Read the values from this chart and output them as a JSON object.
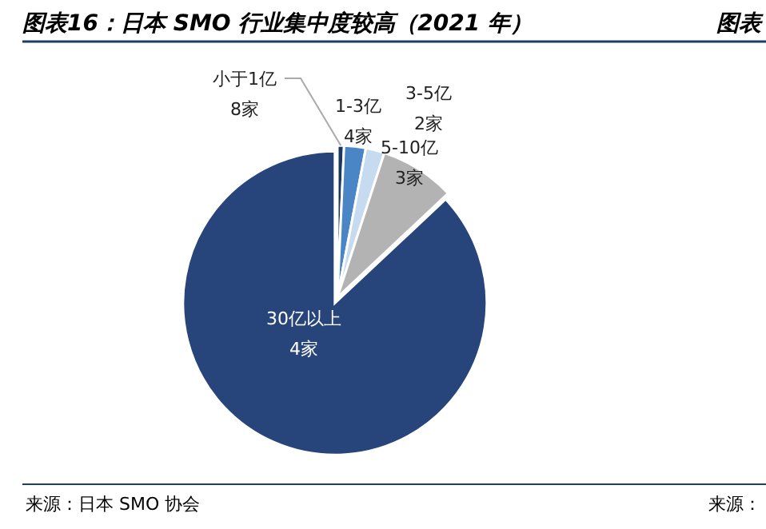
{
  "chart_data": {
    "type": "pie",
    "title": "图表16：日本 SMO 行业集中度较高（2021 年）",
    "categories": [
      "小于1亿",
      "1-3亿",
      "3-5亿",
      "5-10亿",
      "30亿以上"
    ],
    "values": [
      0.7,
      2.3,
      2,
      8,
      87
    ],
    "colors": [
      "#17375e",
      "#4a86c5",
      "#c6dbef",
      "#b3b3b3",
      "#27457a"
    ],
    "annotations": [
      "图表",
      "来源：日本 SMO 协会",
      "来源：",
      {
        "text": "8家",
        "x": "小于1亿"
      },
      {
        "text": "4家",
        "x": "1-3亿"
      },
      {
        "text": "2家",
        "x": "3-5亿"
      },
      {
        "text": "3家",
        "x": "5-10亿"
      },
      {
        "text": "4家",
        "x": "30亿以上"
      }
    ]
  }
}
